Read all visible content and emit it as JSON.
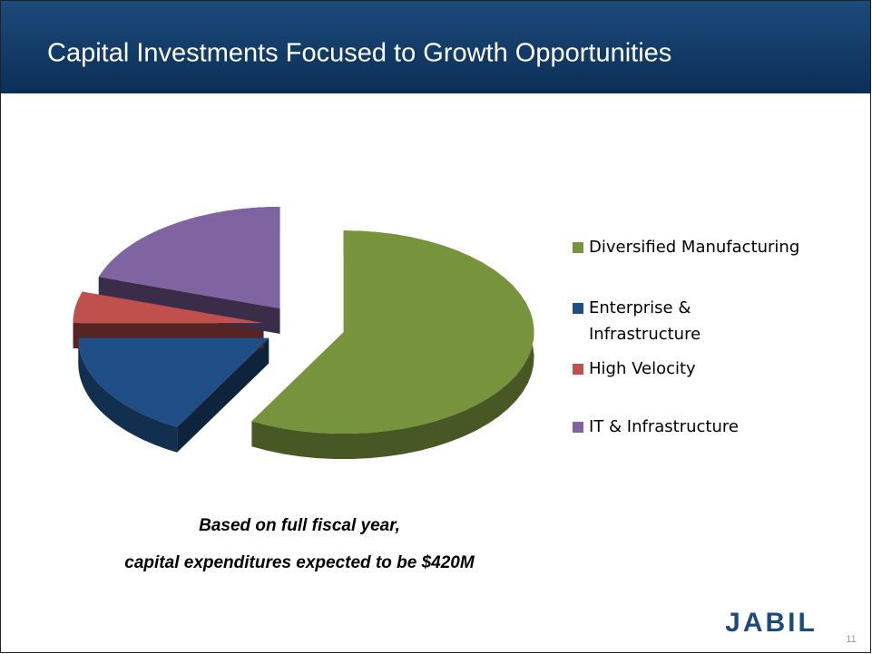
{
  "title": "Capital Investments Focused to Growth Opportunities",
  "chart_data": {
    "type": "pie",
    "categories": [
      "Diversified Manufacturing",
      "Enterprise & Infrastructure",
      "High Velocity",
      "IT & Infrastructure"
    ],
    "category_lines": [
      [
        "Diversified Manufacturing"
      ],
      [
        "Enterprise &",
        "Infrastructure"
      ],
      [
        "High Velocity"
      ],
      [
        "IT & Infrastructure"
      ]
    ],
    "values": [
      58,
      17,
      5,
      20
    ],
    "colors": [
      "#77933c",
      "#1f4e86",
      "#c0504d",
      "#8064a2"
    ],
    "legend": "right"
  },
  "notes": [
    "Based on full fiscal year,",
    "capital expenditures expected to be $420M"
  ],
  "logo": "JABIL",
  "page_number": "11"
}
